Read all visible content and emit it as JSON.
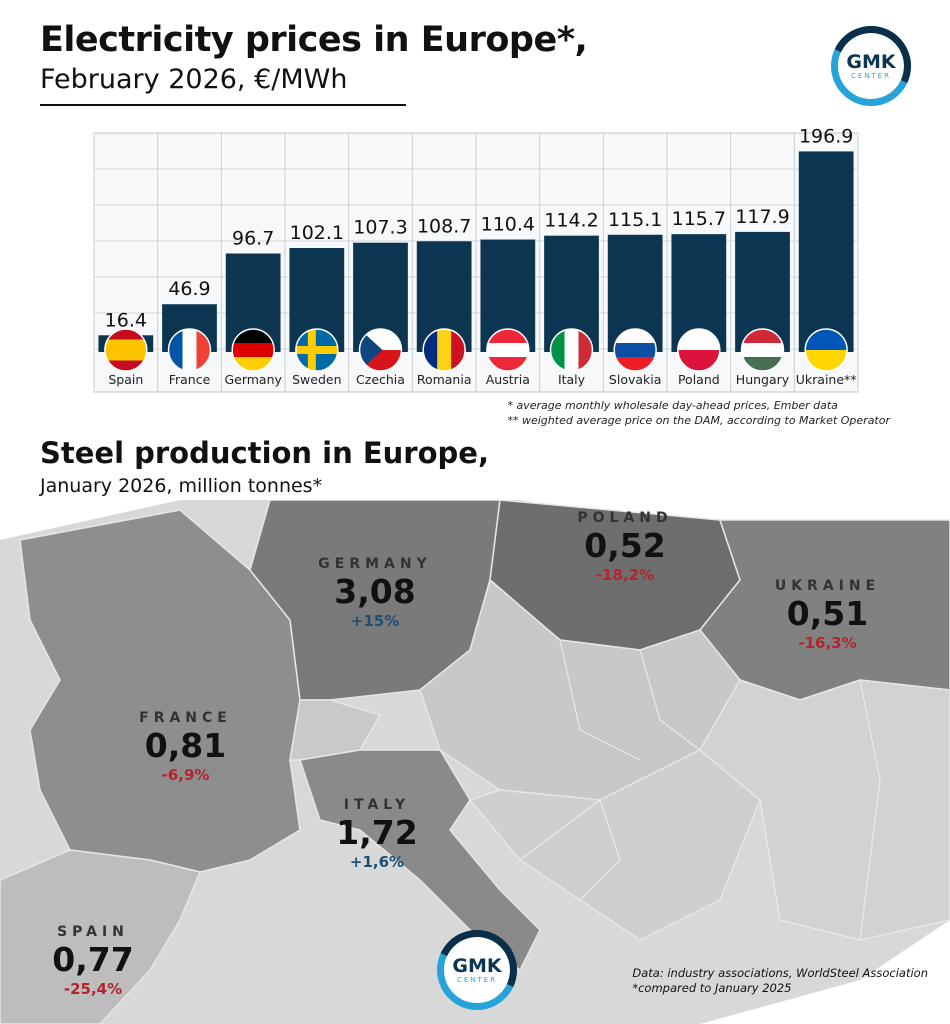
{
  "header": {
    "title": "Electricity prices in Europe*,",
    "subtitle": "February 2026, €/MWh"
  },
  "logo": {
    "main": "GMK",
    "sub": "CENTER"
  },
  "chart_data": [
    {
      "type": "bar",
      "title": "Electricity prices in Europe*,",
      "subtitle": "February 2026, €/MWh",
      "categories": [
        "Spain",
        "France",
        "Germany",
        "Sweden",
        "Czechia",
        "Romania",
        "Austria",
        "Italy",
        "Slovakia",
        "Poland",
        "Hungary",
        "Ukraine**"
      ],
      "values": [
        16.4,
        46.9,
        96.7,
        102.1,
        107.3,
        108.7,
        110.4,
        114.2,
        115.1,
        115.7,
        117.9,
        196.9
      ],
      "value_labels": [
        "16.4",
        "46.9",
        "96.7",
        "102.1",
        "107.3",
        "108.7",
        "110.4",
        "114.2",
        "115.1",
        "115.7",
        "117.9",
        "196.9"
      ],
      "ylim": [
        0,
        215
      ],
      "grid": true,
      "bar_color": "#0b3550",
      "flags": [
        "spain-flag",
        "france-flag",
        "germany-flag",
        "sweden-flag",
        "czechia-flag",
        "romania-flag",
        "austria-flag",
        "italy-flag",
        "slovakia-flag",
        "poland-flag",
        "hungary-flag",
        "ukraine-flag"
      ]
    },
    {
      "type": "table",
      "title": "Steel production in Europe,",
      "subtitle": "January 2026, million tonnes*",
      "rows": [
        {
          "country": "GERMANY",
          "value": "3,08",
          "change": "+15%",
          "direction": "up"
        },
        {
          "country": "POLAND",
          "value": "0,52",
          "change": "-18,2%",
          "direction": "down"
        },
        {
          "country": "UKRAINE",
          "value": "0,51",
          "change": "-16,3%",
          "direction": "down"
        },
        {
          "country": "FRANCE",
          "value": "0,81",
          "change": "-6,9%",
          "direction": "down"
        },
        {
          "country": "ITALY",
          "value": "1,72",
          "change": "+1,6%",
          "direction": "up"
        },
        {
          "country": "SPAIN",
          "value": "0,77",
          "change": "-25,4%",
          "direction": "down"
        }
      ]
    }
  ],
  "notes": {
    "note1": "* average monthly wholesale day-ahead prices, Ember data",
    "note2": "** weighted average price on the DAM, according to Market Operator"
  },
  "steel": {
    "title": "Steel production in Europe,",
    "subtitle": "January 2026, million tonnes*",
    "germany": {
      "name": "GERMANY",
      "value": "3,08",
      "change": "+15%"
    },
    "poland": {
      "name": "POLAND",
      "value": "0,52",
      "change": "-18,2%"
    },
    "ukraine": {
      "name": "UKRAINE",
      "value": "0,51",
      "change": "-16,3%"
    },
    "france": {
      "name": "FRANCE",
      "value": "0,81",
      "change": "-6,9%"
    },
    "italy": {
      "name": "ITALY",
      "value": "1,72",
      "change": "+1,6%"
    },
    "spain": {
      "name": "SPAIN",
      "value": "0,77",
      "change": "-25,4%"
    }
  },
  "source": {
    "line1": "Data: industry associations, WorldSteel Association",
    "line2": "*compared to January 2025"
  },
  "colors": {
    "bar": "#0b3550",
    "negative": "#b0252f",
    "positive": "#1e4f75",
    "logo_ring": "#27a3d9"
  }
}
